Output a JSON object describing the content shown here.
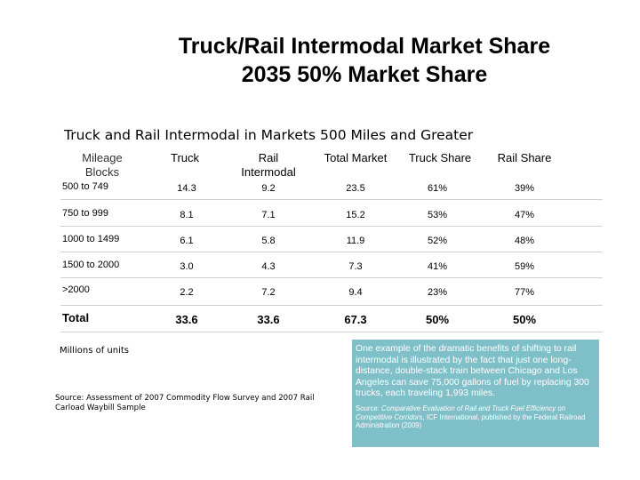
{
  "title": {
    "line1": "Truck/Rail Intermodal Market Share",
    "line2": "2035 50% Market Share"
  },
  "subtitle": "Truck and Rail Intermodal in Markets 500 Miles and Greater",
  "table": {
    "headers": {
      "mileage_line1": "Mileage",
      "mileage_line2": "Blocks",
      "truck": "Truck",
      "rail_line1": "Rail",
      "rail_line2": "Intermodal",
      "total_market": "Total Market",
      "truck_share": "Truck Share",
      "rail_share": "Rail Share"
    },
    "rows": [
      {
        "label": "500 to 749",
        "truck": "14.3",
        "rail": "9.2",
        "total": "23.5",
        "truck_share": "61%",
        "rail_share": "39%"
      },
      {
        "label": "750 to 999",
        "truck": "8.1",
        "rail": "7.1",
        "total": "15.2",
        "truck_share": "53%",
        "rail_share": "47%"
      },
      {
        "label": "1000 to 1499",
        "truck": "6.1",
        "rail": "5.8",
        "total": "11.9",
        "truck_share": "52%",
        "rail_share": "48%"
      },
      {
        "label": "1500 to 2000",
        "truck": "3.0",
        "rail": "4.3",
        "total": "7.3",
        "truck_share": "41%",
        "rail_share": "59%"
      },
      {
        "label": ">2000",
        "truck": "2.2",
        "rail": "7.2",
        "total": "9.4",
        "truck_share": "23%",
        "rail_share": "77%"
      }
    ],
    "total": {
      "label": "Total",
      "truck": "33.6",
      "rail": "33.6",
      "total": "67.3",
      "truck_share": "50%",
      "rail_share": "50%"
    }
  },
  "units_note": "Millions of units",
  "source_note": "Source:  Assessment of 2007 Commodity Flow Survey and 2007 Rail Carload Waybill Sample",
  "callout": {
    "text": "One example of the dramatic benefits of shifting to rail intermodal is illustrated by the fact that just one long-distance, double-stack train between Chicago and Los Angeles can save 75,000 gallons of fuel by replacing 300 trucks, each traveling 1,993 miles.",
    "source_prefix": "Source: ",
    "source_title": "Comparative Evaluation of Rail and Truck Fuel Efficiency on Competitive Corridors",
    "source_rest": ", ICF International, published by the Federal Railroad Administration (2009)",
    "bg_color": "#7fbfc8"
  }
}
